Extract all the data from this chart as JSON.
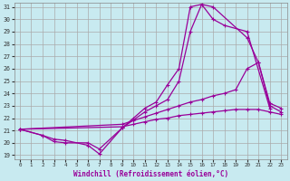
{
  "bg_color": "#c8eaf0",
  "grid_color": "#aaaaaa",
  "line_color": "#990099",
  "xlabel": "Windchill (Refroidissement éolien,°C)",
  "xlim": [
    -0.5,
    23.5
  ],
  "ylim": [
    18.7,
    31.3
  ],
  "yticks": [
    19,
    20,
    21,
    22,
    23,
    24,
    25,
    26,
    27,
    28,
    29,
    30,
    31
  ],
  "xticks": [
    0,
    1,
    2,
    3,
    4,
    5,
    6,
    7,
    8,
    9,
    10,
    11,
    12,
    13,
    14,
    15,
    16,
    17,
    18,
    19,
    20,
    21,
    22,
    23
  ],
  "series": [
    {
      "x": [
        0,
        2,
        3,
        4,
        6,
        7,
        9,
        10,
        11,
        12,
        13,
        14,
        15,
        16,
        17,
        18,
        20,
        22
      ],
      "y": [
        21.1,
        20.6,
        20.3,
        20.2,
        19.8,
        19.1,
        21.2,
        22.0,
        22.8,
        23.3,
        24.7,
        26.0,
        31.0,
        31.2,
        30.0,
        29.5,
        29.0,
        22.8
      ]
    },
    {
      "x": [
        0,
        2,
        3,
        4,
        6,
        7,
        9,
        11,
        12,
        13,
        14,
        15,
        16,
        17,
        20,
        21,
        22,
        23
      ],
      "y": [
        21.1,
        20.6,
        20.1,
        20.0,
        20.0,
        19.5,
        21.2,
        22.5,
        23.0,
        23.5,
        25.0,
        29.0,
        31.2,
        31.0,
        28.5,
        26.5,
        23.0,
        22.5
      ]
    },
    {
      "x": [
        0,
        9,
        10,
        11,
        12,
        13,
        14,
        15,
        16,
        17,
        18,
        19,
        20,
        21,
        22,
        23
      ],
      "y": [
        21.1,
        21.5,
        21.8,
        22.1,
        22.4,
        22.7,
        23.0,
        23.3,
        23.5,
        23.8,
        24.0,
        24.3,
        26.0,
        26.5,
        23.2,
        22.8
      ]
    },
    {
      "x": [
        0,
        9,
        10,
        11,
        12,
        13,
        14,
        15,
        16,
        17,
        18,
        19,
        20,
        21,
        22,
        23
      ],
      "y": [
        21.1,
        21.3,
        21.5,
        21.7,
        21.9,
        22.0,
        22.2,
        22.3,
        22.4,
        22.5,
        22.6,
        22.7,
        22.7,
        22.7,
        22.5,
        22.3
      ]
    }
  ]
}
